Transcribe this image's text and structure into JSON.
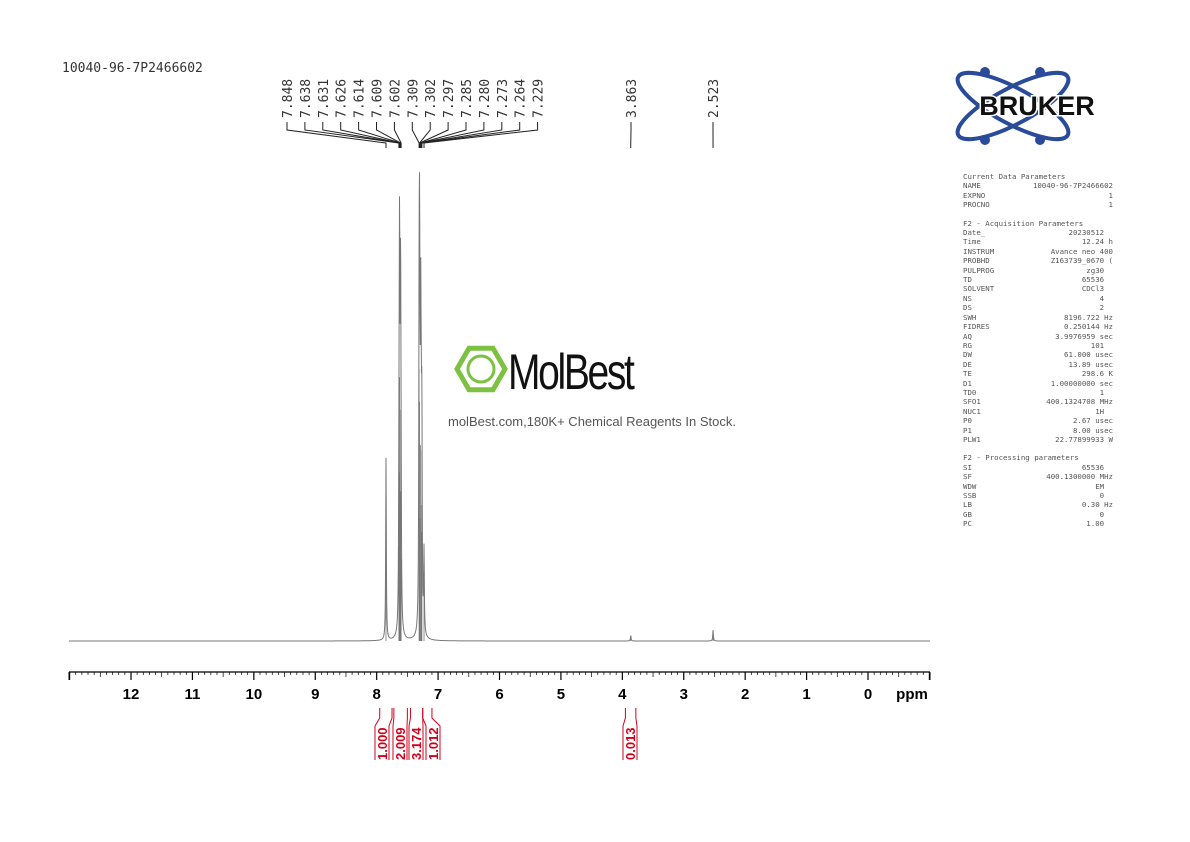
{
  "title": "10040-96-7P2466602",
  "watermark": {
    "name": "MolBest",
    "tagline": "molBest.com,180K+ Chemical Reagents In Stock.",
    "color": "#7dc142"
  },
  "logo": {
    "text": "BRUKER",
    "color": "#2a4a9a"
  },
  "params": {
    "sections": [
      {
        "header": "Current Data Parameters",
        "rows": [
          [
            "NAME",
            "10040-96-7P2466602"
          ],
          [
            "EXPNO",
            "1"
          ],
          [
            "PROCNO",
            "1"
          ]
        ]
      },
      {
        "header": "F2 - Acquisition Parameters",
        "rows": [
          [
            "Date_",
            "20230512  "
          ],
          [
            "Time",
            "12.24 h"
          ],
          [
            "INSTRUM",
            "Avance neo 400"
          ],
          [
            "PROBHD",
            "Z163739_0670 ("
          ],
          [
            "PULPROG",
            "zg30  "
          ],
          [
            "TD",
            "65536  "
          ],
          [
            "SOLVENT",
            "CDCl3  "
          ],
          [
            "NS",
            "4  "
          ],
          [
            "DS",
            "2  "
          ],
          [
            "SWH",
            "8196.722 Hz"
          ],
          [
            "FIDRES",
            "0.250144 Hz"
          ],
          [
            "AQ",
            "3.9976959 sec"
          ],
          [
            "RG",
            "101  "
          ],
          [
            "DW",
            "61.000 usec"
          ],
          [
            "DE",
            "13.89 usec"
          ],
          [
            "TE",
            "298.6 K"
          ],
          [
            "D1",
            "1.00000000 sec"
          ],
          [
            "TD0",
            "1  "
          ],
          [
            "SFO1",
            "400.1324708 MHz"
          ],
          [
            "NUC1",
            "1H  "
          ],
          [
            "P0",
            "2.67 usec"
          ],
          [
            "P1",
            "8.00 usec"
          ],
          [
            "PLW1",
            "22.77899933 W"
          ]
        ]
      },
      {
        "header": "F2 - Processing parameters",
        "rows": [
          [
            "SI",
            "65536  "
          ],
          [
            "SF",
            "400.1300000 MHz"
          ],
          [
            "WDW",
            "EM  "
          ],
          [
            "SSB",
            "0  "
          ],
          [
            "LB",
            "0.30 Hz"
          ],
          [
            "GB",
            "0  "
          ],
          [
            "PC",
            "1.00  "
          ]
        ]
      }
    ]
  },
  "chart_data": {
    "type": "line",
    "xlabel": "ppm",
    "xlim": [
      13.0,
      -1.0
    ],
    "x_reversed": true,
    "xticks": [
      "12",
      "11",
      "10",
      "9",
      "8",
      "7",
      "6",
      "5",
      "4",
      "3",
      "2",
      "1",
      "0"
    ],
    "line_color": "#777777",
    "peak_labels": [
      "7.848",
      "7.638",
      "7.631",
      "7.626",
      "7.614",
      "7.609",
      "7.602",
      "7.309",
      "7.302",
      "7.297",
      "7.285",
      "7.280",
      "7.273",
      "7.264",
      "7.229",
      "3.863",
      "2.523"
    ],
    "peaks": [
      {
        "ppm": 7.848,
        "intensity": 0.67
      },
      {
        "ppm": 7.638,
        "intensity": 0.35
      },
      {
        "ppm": 7.631,
        "intensity": 0.62
      },
      {
        "ppm": 7.626,
        "intensity": 0.97
      },
      {
        "ppm": 7.614,
        "intensity": 0.55
      },
      {
        "ppm": 7.609,
        "intensity": 0.85
      },
      {
        "ppm": 7.602,
        "intensity": 0.3
      },
      {
        "ppm": 7.309,
        "intensity": 1.0
      },
      {
        "ppm": 7.302,
        "intensity": 0.88
      },
      {
        "ppm": 7.297,
        "intensity": 0.45
      },
      {
        "ppm": 7.285,
        "intensity": 0.72
      },
      {
        "ppm": 7.28,
        "intensity": 0.5
      },
      {
        "ppm": 7.273,
        "intensity": 0.4
      },
      {
        "ppm": 7.264,
        "intensity": 0.7
      },
      {
        "ppm": 7.229,
        "intensity": 0.3
      },
      {
        "ppm": 3.863,
        "intensity": 0.02
      },
      {
        "ppm": 2.523,
        "intensity": 0.04
      }
    ],
    "integrals": [
      {
        "from": 7.95,
        "to": 7.75,
        "value": "1.000"
      },
      {
        "from": 7.72,
        "to": 7.5,
        "value": "2.009"
      },
      {
        "from": 7.45,
        "to": 7.25,
        "value": "3.174"
      },
      {
        "from": 7.25,
        "to": 7.1,
        "value": "1.012"
      },
      {
        "from": 3.95,
        "to": 3.78,
        "value": "0.013"
      }
    ],
    "integral_color": "#d0021b"
  }
}
